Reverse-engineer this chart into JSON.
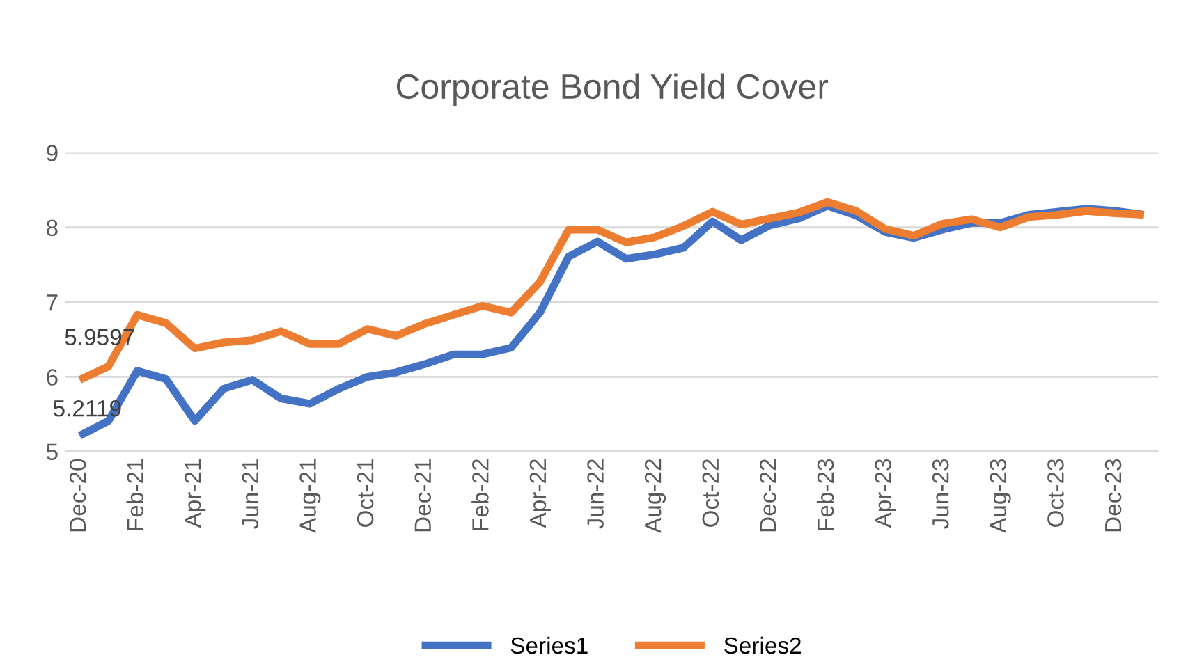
{
  "chart_data": {
    "type": "line",
    "title": "Corporate Bond Yield Cover",
    "categories": [
      "Dec-20",
      null,
      "Feb-21",
      null,
      "Apr-21",
      null,
      "Jun-21",
      null,
      "Aug-21",
      null,
      "Oct-21",
      null,
      "Dec-21",
      null,
      "Feb-22",
      null,
      "Apr-22",
      null,
      "Jun-22",
      null,
      "Aug-22",
      null,
      "Oct-22",
      null,
      "Dec-22",
      null,
      "Feb-23",
      null,
      "Apr-23",
      null,
      "Jun-23",
      null,
      "Aug-23",
      null,
      "Oct-23",
      null,
      "Dec-23",
      null
    ],
    "series": [
      {
        "name": "Series1",
        "color": "#4472c4",
        "values": [
          5.2119,
          5.41,
          6.08,
          5.97,
          5.41,
          5.84,
          5.96,
          5.71,
          5.64,
          5.84,
          6.0,
          6.06,
          6.17,
          6.3,
          6.3,
          6.39,
          6.86,
          7.61,
          7.81,
          7.58,
          7.64,
          7.73,
          8.08,
          7.83,
          8.03,
          8.12,
          8.29,
          8.16,
          7.94,
          7.86,
          7.97,
          8.06,
          8.06,
          8.17,
          8.21,
          8.25,
          8.22,
          8.17
        ],
        "value_labels": [
          "5.2119",
          null,
          null,
          null,
          null,
          null,
          null,
          null,
          null,
          null,
          null,
          null,
          null,
          null,
          null,
          null,
          null,
          null,
          null,
          null,
          null,
          null,
          null,
          null,
          null,
          null,
          null,
          null,
          null,
          null,
          null,
          null,
          null,
          null,
          null,
          null,
          null,
          null
        ]
      },
      {
        "name": "Series2",
        "color": "#ed7d31",
        "values": [
          5.9597,
          6.14,
          6.83,
          6.72,
          6.38,
          6.46,
          6.49,
          6.61,
          6.44,
          6.44,
          6.64,
          6.55,
          6.71,
          6.83,
          6.95,
          6.86,
          7.27,
          7.97,
          7.97,
          7.8,
          7.87,
          8.02,
          8.21,
          8.04,
          8.12,
          8.2,
          8.34,
          8.22,
          7.98,
          7.89,
          8.05,
          8.11,
          8.0,
          8.14,
          8.17,
          8.22,
          8.19,
          8.17
        ],
        "value_labels": [
          "5.9597",
          null,
          null,
          null,
          null,
          null,
          null,
          null,
          null,
          null,
          null,
          null,
          null,
          null,
          null,
          null,
          null,
          null,
          null,
          null,
          null,
          null,
          null,
          null,
          null,
          null,
          null,
          null,
          null,
          null,
          null,
          null,
          null,
          null,
          null,
          null,
          null,
          null
        ]
      }
    ],
    "ylim": [
      5,
      9
    ],
    "yticks": [
      5,
      6,
      7,
      8,
      9
    ],
    "grid": "y",
    "legend": "bottom",
    "marker": "none",
    "line_style": "solid"
  }
}
